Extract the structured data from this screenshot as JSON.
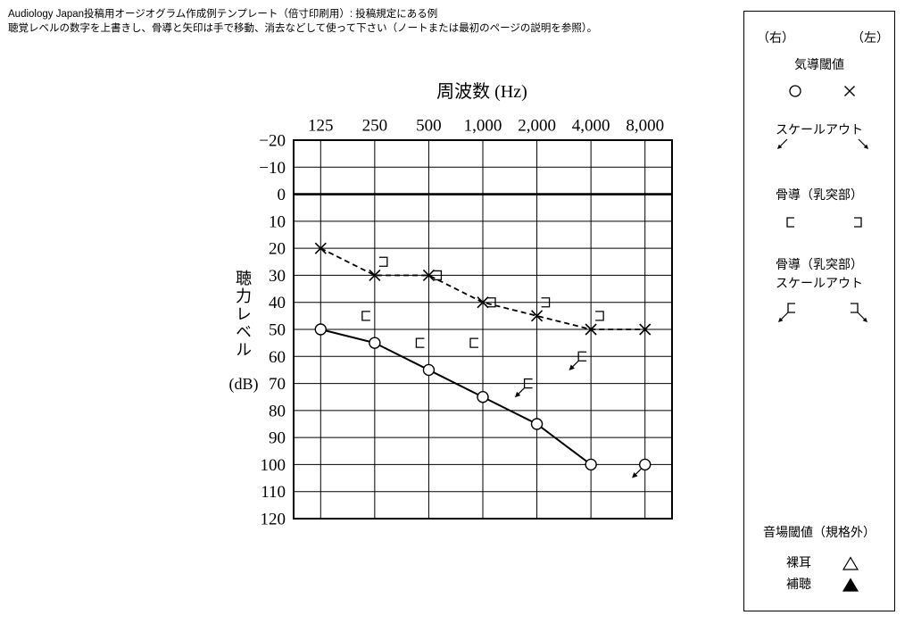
{
  "header": {
    "line1": "Audiology Japan投稿用オージオグラム作成例テンプレート（倍寸印刷用）: 投稿規定にある例",
    "line2": "聴覚レベルの数字を上書きし、骨導と矢印は手で移動、消去などして使って下さい（ノートまたは最初のページの説明を参照）。"
  },
  "chart_data": {
    "type": "line",
    "xlabel": "周波数 (Hz)",
    "x_axis_position": "top",
    "x": [
      125,
      250,
      500,
      1000,
      2000,
      4000,
      8000
    ],
    "x_tick_labels": [
      "125",
      "250",
      "500",
      "1,000",
      "2,000",
      "4,000",
      "8,000"
    ],
    "ylabel": "聴力レベル",
    "ylabel_unit": "(dB)",
    "y_tick_labels": [
      "−20",
      "−10",
      "0",
      "10",
      "20",
      "30",
      "40",
      "50",
      "60",
      "70",
      "80",
      "90",
      "100",
      "110",
      "120"
    ],
    "ylim": [
      -20,
      120
    ],
    "y_inverted": true,
    "grid": true,
    "zero_line_bold": true,
    "series": [
      {
        "marker": "circle-icon",
        "connected": true,
        "dashed": false,
        "points": [
          [
            125,
            50
          ],
          [
            250,
            55
          ],
          [
            500,
            65
          ],
          [
            1000,
            75
          ],
          [
            2000,
            85
          ],
          [
            4000,
            100
          ]
        ],
        "scale_out": [
          [
            8000,
            100
          ]
        ]
      },
      {
        "marker": "cross-icon",
        "connected": true,
        "dashed": true,
        "points": [
          [
            125,
            20
          ],
          [
            250,
            30
          ],
          [
            500,
            30
          ],
          [
            1000,
            40
          ],
          [
            2000,
            45
          ],
          [
            4000,
            50
          ],
          [
            8000,
            50
          ]
        ],
        "scale_out": []
      },
      {
        "marker": "bracket-open-right-icon",
        "connected": false,
        "dashed": false,
        "points": [
          [
            250,
            45
          ],
          [
            500,
            55
          ],
          [
            1000,
            55
          ]
        ],
        "scale_out": [
          [
            2000,
            70
          ],
          [
            4000,
            60
          ]
        ]
      },
      {
        "marker": "bracket-open-left-icon",
        "connected": false,
        "dashed": false,
        "points": [
          [
            250,
            25
          ],
          [
            500,
            30
          ],
          [
            1000,
            40
          ],
          [
            2000,
            40
          ],
          [
            4000,
            45
          ]
        ],
        "scale_out": []
      }
    ]
  },
  "legend": {
    "right_label": "（右）",
    "left_label": "（左）",
    "air": {
      "title": "気導閾値",
      "right_icon": "circle-icon",
      "left_icon": "cross-icon"
    },
    "air_scale_out": {
      "title": "スケールアウト",
      "right_icon": "arrow-down-left-icon",
      "left_icon": "arrow-down-right-icon"
    },
    "bone": {
      "title": "骨導（乳突部）",
      "right_icon": "bracket-open-right-icon",
      "left_icon": "bracket-open-left-icon"
    },
    "bone_scale_out": {
      "title_line1": "骨導（乳突部）",
      "title_line2": "スケールアウト",
      "right_icon": "bracket-scale-out-right-icon",
      "left_icon": "bracket-scale-out-left-icon"
    },
    "sound_field": {
      "title": "音場閾値（規格外）",
      "unaided_label": "裸耳",
      "unaided_icon": "triangle-outline-icon",
      "aided_label": "補聴",
      "aided_icon": "triangle-filled-icon"
    }
  }
}
